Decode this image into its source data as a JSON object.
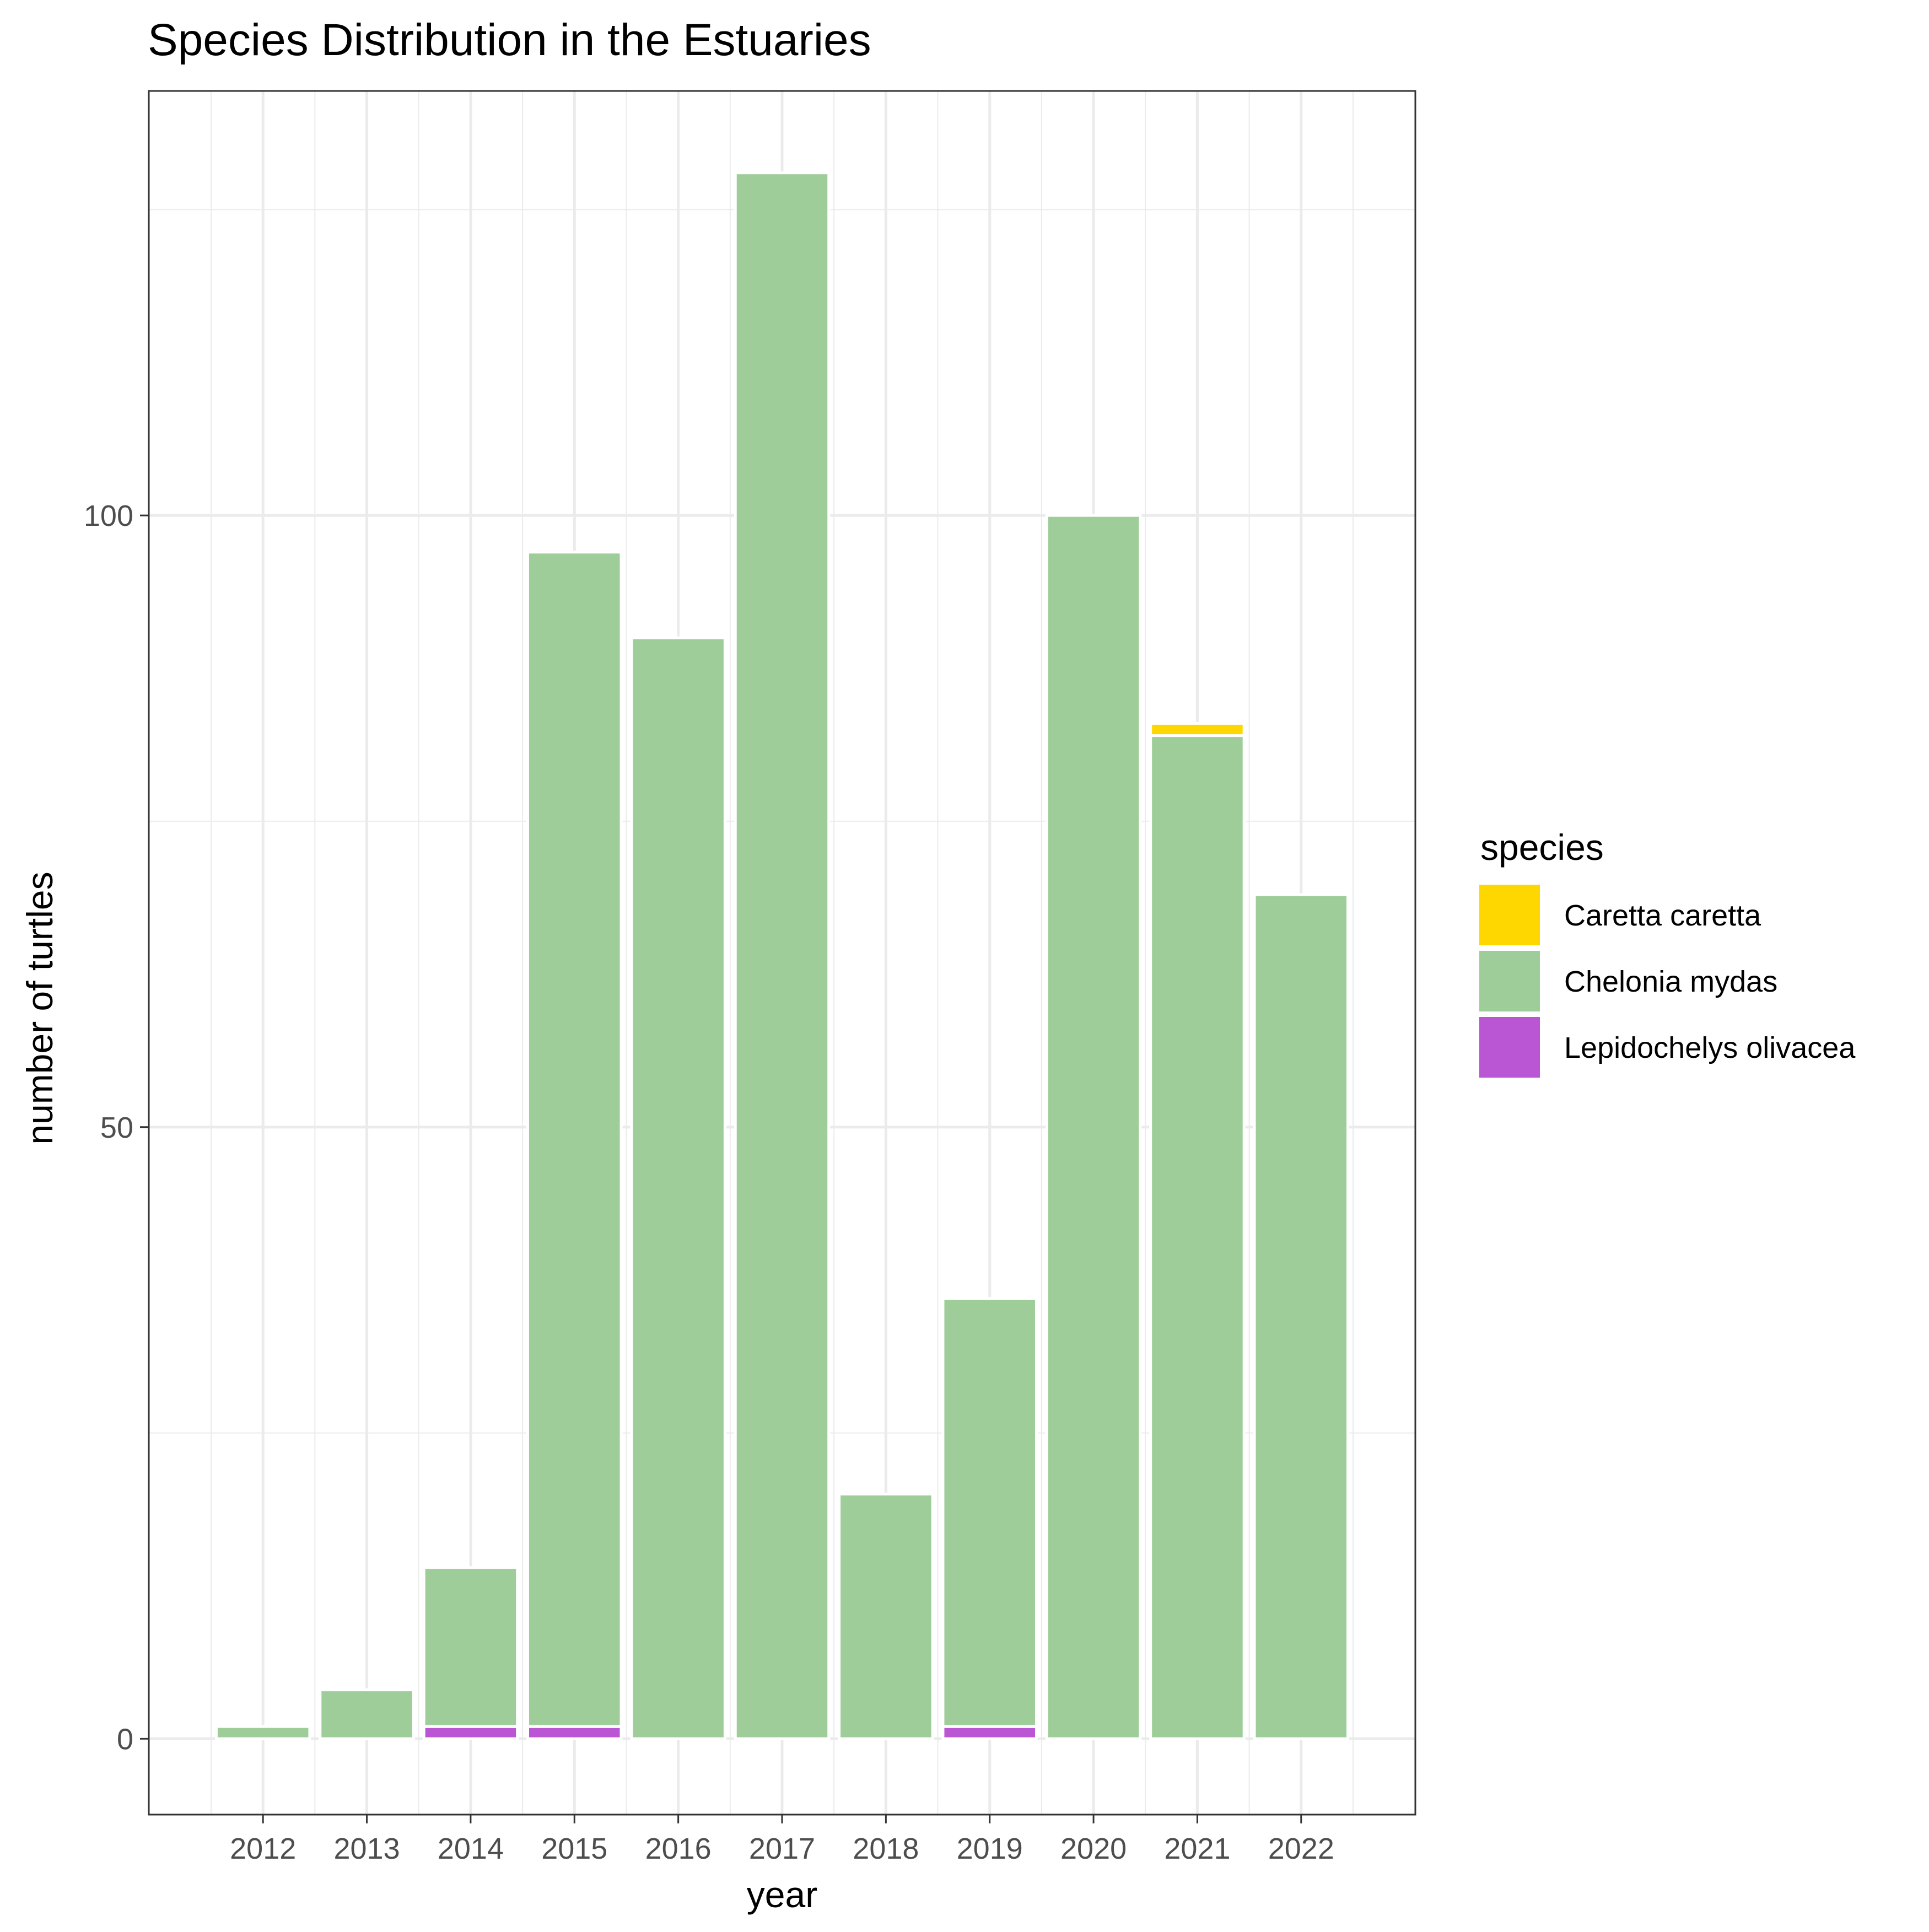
{
  "chart_data": {
    "type": "bar",
    "stacked": true,
    "title": "Species Distribution in the Estuaries",
    "xlabel": "year",
    "ylabel": "number of turtles",
    "categories": [
      "2012",
      "2013",
      "2014",
      "2015",
      "2016",
      "2017",
      "2018",
      "2019",
      "2020",
      "2021",
      "2022"
    ],
    "ylim": [
      -6.2,
      134.7
    ],
    "yticks": [
      0,
      50,
      100
    ],
    "ytick_labels": [
      "0",
      "50",
      "100"
    ],
    "minor_yticks": [
      25,
      75,
      125
    ],
    "grid": true,
    "legend": {
      "title": "species",
      "position": "right"
    },
    "series": [
      {
        "name": "Lepidochelys olivacea",
        "color": "#BA55D3",
        "values": [
          0,
          0,
          1,
          1,
          0,
          0,
          0,
          1,
          0,
          0,
          0
        ]
      },
      {
        "name": "Chelonia mydas",
        "color": "#9ECD9A",
        "values": [
          1,
          4,
          13,
          96,
          90,
          128,
          20,
          35,
          100,
          82,
          69
        ]
      },
      {
        "name": "Caretta caretta",
        "color": "#FFD700",
        "values": [
          0,
          0,
          0,
          0,
          0,
          0,
          0,
          0,
          0,
          1,
          0
        ]
      }
    ],
    "legend_order": [
      "Caretta caretta",
      "Chelonia mydas",
      "Lepidochelys olivacea"
    ]
  }
}
